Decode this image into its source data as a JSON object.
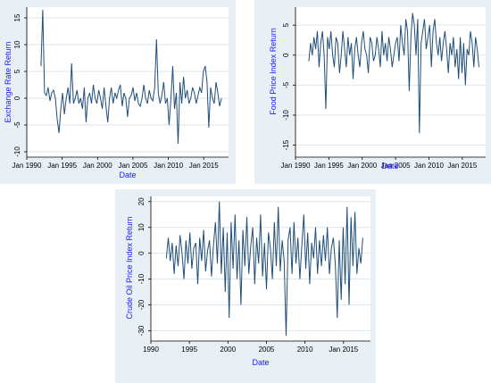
{
  "colors": {
    "panel_bg": "#e8f0f6",
    "plot_bg": "#ffffff",
    "grid": "#dce6ee",
    "series": "#1f4e79",
    "label": "#1a1aff"
  },
  "chart_data": [
    {
      "type": "line",
      "ylabel": "Exchange Rate Return",
      "xlabel": "Date",
      "x_ticks": [
        "Jan 1990",
        "Jan 1995",
        "Jan 2000",
        "Jan 2005",
        "Jan 2010",
        "Jan 2015"
      ],
      "y_ticks": [
        "-10",
        "-5",
        "0",
        "5",
        "10",
        "15"
      ],
      "xlim": [
        1990,
        2018.5
      ],
      "ylim": [
        -11,
        17
      ],
      "x_start": 1992.0,
      "x_end": 2017.5,
      "series": [
        {
          "values": [
            6,
            16.5,
            1,
            0.5,
            2,
            -0.5,
            1,
            1.5,
            0,
            -4,
            -6.5,
            -2,
            1,
            -3,
            0,
            2,
            -1,
            6.5,
            -1,
            0,
            1.5,
            -1,
            0,
            -2,
            2,
            -4.5,
            0,
            1,
            -1,
            2.5,
            0,
            -1,
            1.5,
            0,
            -2,
            2,
            -1.5,
            -4.5,
            0,
            2,
            -1,
            1,
            0,
            1.5,
            2.5,
            -1.5,
            1,
            0,
            -3.5,
            0,
            0.5,
            2,
            -0.5,
            1,
            -1,
            -1.5,
            0,
            2.5,
            0,
            -1,
            1.5,
            0,
            -0.5,
            2,
            11,
            1,
            -1,
            0.5,
            3,
            -1,
            0,
            -5,
            0,
            6,
            -2,
            1,
            -8.5,
            3,
            -1,
            4,
            0,
            1.5,
            -1,
            0,
            2,
            1,
            -1,
            0.5,
            2,
            1,
            5,
            6,
            3,
            -5.5,
            2,
            0,
            -1,
            3,
            1,
            -1.5,
            0
          ]
        }
      ]
    },
    {
      "type": "line",
      "ylabel": "Food Price Index Return",
      "xlabel": "Date",
      "x_ticks": [
        "Jan 1990",
        "Jan 1995",
        "Jan 2000",
        "Jan 2005",
        "Jan 2010",
        "Jan 2015"
      ],
      "y_ticks": [
        "-15",
        "-10",
        "-5",
        "0",
        "5"
      ],
      "xlim": [
        1990,
        2018.5
      ],
      "ylim": [
        -17,
        8
      ],
      "x_start": 1992.0,
      "x_end": 2017.5,
      "series": [
        {
          "values": [
            -1,
            2,
            0,
            3,
            1,
            4,
            -2,
            2,
            4,
            0,
            -9,
            3,
            1,
            4,
            0,
            -2,
            3,
            2,
            -3,
            0,
            4,
            1,
            -2,
            3,
            0,
            2,
            -4,
            1,
            3,
            0,
            -2,
            2,
            4,
            1,
            0,
            -3,
            3,
            2,
            -1,
            0,
            3,
            1,
            -2,
            4,
            0,
            2,
            -1,
            3,
            1,
            -2,
            0,
            2,
            3,
            -1,
            5,
            2,
            0,
            6,
            4,
            -6,
            3,
            7,
            5,
            0,
            6,
            -13,
            2,
            4,
            6,
            1,
            3,
            5,
            -2,
            4,
            6,
            2,
            0,
            3,
            -1,
            2,
            4,
            1,
            -3,
            2,
            0,
            3,
            -2,
            1,
            -4,
            3,
            -3,
            2,
            -5,
            1,
            0,
            4,
            2,
            -2,
            3,
            1,
            -2
          ]
        }
      ]
    },
    {
      "type": "line",
      "ylabel": "Crude Oil Price Index Return",
      "xlabel": "Date",
      "x_ticks": [
        "1990",
        "1995",
        "2000",
        "2005",
        "2010",
        "Jan 2015"
      ],
      "y_ticks": [
        "-30",
        "-20",
        "-10",
        "0",
        "10",
        "20"
      ],
      "xlim": [
        1990,
        2018.5
      ],
      "ylim": [
        -34,
        22
      ],
      "x_start": 1992.0,
      "x_end": 2017.5,
      "series": [
        {
          "values": [
            -2,
            6,
            -3,
            4,
            -8,
            3,
            -5,
            7,
            0,
            -10,
            5,
            -4,
            8,
            -6,
            2,
            4,
            -12,
            6,
            -3,
            9,
            -7,
            1,
            5,
            -9,
            3,
            12,
            -4,
            20,
            -8,
            10,
            -15,
            8,
            -25,
            12,
            -6,
            15,
            -10,
            5,
            -20,
            9,
            -5,
            14,
            -8,
            3,
            10,
            -12,
            6,
            -4,
            15,
            -9,
            4,
            -14,
            8,
            2,
            -10,
            12,
            -5,
            18,
            -7,
            5,
            -3,
            -32,
            5,
            10,
            -8,
            12,
            -4,
            6,
            -10,
            3,
            15,
            -6,
            8,
            -12,
            4,
            -2,
            10,
            -8,
            5,
            -5,
            7,
            -3,
            10,
            -8,
            2,
            6,
            -4,
            -25,
            5,
            -18,
            10,
            -12,
            18,
            -20,
            14,
            -5,
            16,
            -8,
            2,
            -4,
            6
          ]
        }
      ]
    }
  ]
}
